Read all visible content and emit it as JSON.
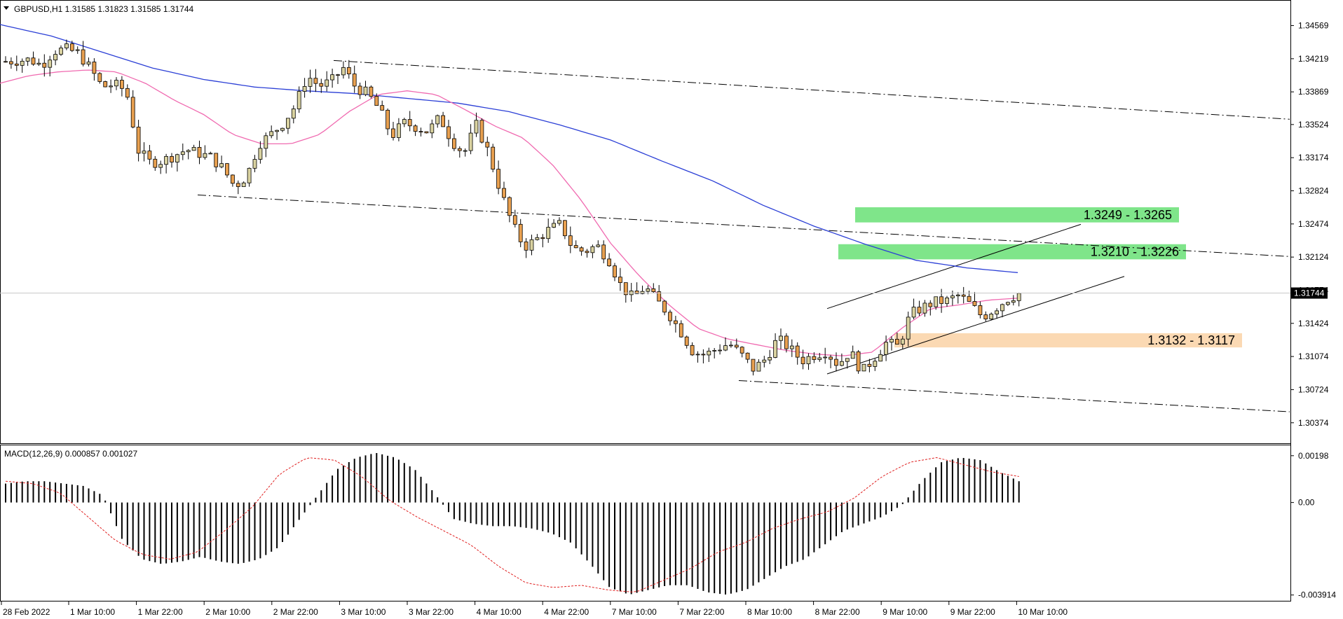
{
  "header": {
    "symbol_line": "GBPUSD,H1  1.31585 1.31823 1.31585 1.31744",
    "indicator_line": "MACD(12,26,9) 0.000857 0.001027"
  },
  "colors": {
    "bull": "#d9d2a0",
    "bear": "#e8a050",
    "ma_fast": "#f06ab0",
    "ma_slow": "#2b3fd6",
    "zone_green": "#7fe58a",
    "zone_orange": "#fbd9b3",
    "macd_signal": "#e02020"
  },
  "chart_data": [
    {
      "type": "candlestick",
      "symbol": "GBPUSD",
      "timeframe": "H1",
      "yticks": [
        "1.34569",
        "1.34219",
        "1.33869",
        "1.33524",
        "1.33174",
        "1.32824",
        "1.32474",
        "1.32124",
        "1.31774",
        "1.31424",
        "1.31074",
        "1.30724",
        "1.30374"
      ],
      "ytick_values": [
        1.34569,
        1.34219,
        1.33869,
        1.33524,
        1.33174,
        1.32824,
        1.32474,
        1.32124,
        1.31774,
        1.31424,
        1.31074,
        1.30724,
        1.30374
      ],
      "ylim": [
        1.3018,
        1.3478
      ],
      "xticks": [
        "28 Feb 2022",
        "1 Mar 10:00",
        "1 Mar 22:00",
        "2 Mar 10:00",
        "2 Mar 22:00",
        "3 Mar 10:00",
        "3 Mar 22:00",
        "4 Mar 10:00",
        "4 Mar 22:00",
        "7 Mar 10:00",
        "7 Mar 22:00",
        "8 Mar 10:00",
        "8 Mar 22:00",
        "9 Mar 10:00",
        "9 Mar 22:00",
        "10 Mar 10:00"
      ],
      "current_price": "1.31744",
      "close_path": [
        1.3419,
        1.342,
        1.3421,
        1.3415,
        1.343,
        1.3432,
        1.3428,
        1.3412,
        1.3392,
        1.3395,
        1.3388,
        1.3325,
        1.3312,
        1.3314,
        1.332,
        1.3326,
        1.3322,
        1.3318,
        1.3306,
        1.3287,
        1.3298,
        1.3332,
        1.3342,
        1.3354,
        1.3372,
        1.3404,
        1.3393,
        1.3398,
        1.3412,
        1.3392,
        1.3385,
        1.3368,
        1.334,
        1.3354,
        1.335,
        1.3345,
        1.336,
        1.3335,
        1.3322,
        1.3352,
        1.3324,
        1.3283,
        1.3247,
        1.3223,
        1.3231,
        1.3241,
        1.3247,
        1.3222,
        1.3218,
        1.3225,
        1.321,
        1.3182,
        1.3169,
        1.3181,
        1.3166,
        1.3152,
        1.3133,
        1.3112,
        1.3109,
        1.3116,
        1.3121,
        1.3109,
        1.3094,
        1.3105,
        1.3126,
        1.3116,
        1.3103,
        1.3109,
        1.3113,
        1.3099,
        1.3113,
        1.3091,
        1.3106,
        1.3122,
        1.3118,
        1.3152,
        1.3159,
        1.3165,
        1.3166,
        1.3172,
        1.3162,
        1.3149,
        1.3158,
        1.3168,
        1.3174
      ],
      "ma_fast_path": [
        1.3396,
        1.3404,
        1.3408,
        1.341,
        1.3408,
        1.3396,
        1.3378,
        1.3363,
        1.3342,
        1.3332,
        1.3332,
        1.3342,
        1.3366,
        1.3384,
        1.3388,
        1.3384,
        1.3368,
        1.3351,
        1.3338,
        1.331,
        1.3272,
        1.3227,
        1.3192,
        1.3162,
        1.3137,
        1.3126,
        1.312,
        1.3114,
        1.311,
        1.3108,
        1.3112,
        1.3137,
        1.3158,
        1.3162,
        1.3167,
        1.3169
      ],
      "ma_slow_path": [
        1.3458,
        1.3446,
        1.3429,
        1.3412,
        1.34,
        1.3392,
        1.3388,
        1.3385,
        1.338,
        1.3375,
        1.3366,
        1.3352,
        1.3336,
        1.3314,
        1.3293,
        1.3267,
        1.3245,
        1.3226,
        1.3209,
        1.3201,
        1.3196
      ],
      "zones": [
        {
          "label": "1.3249 - 1.3265",
          "low": 1.3249,
          "high": 1.3265
        },
        {
          "label": "1.3210 - 1.3226",
          "low": 1.321,
          "high": 1.3226
        },
        {
          "label": "1.3132 - 1.3117",
          "low": 1.3117,
          "high": 1.3132
        }
      ]
    },
    {
      "type": "histogram",
      "indicator": "MACD(12,26,9)",
      "yticks": [
        "0.00198",
        "0.00",
        "-0.003914"
      ],
      "ytick_values": [
        0.00198,
        0.0,
        -0.003914
      ],
      "ylim": [
        -0.0041,
        0.0023
      ],
      "histogram_path": [
        0.0008,
        0.0009,
        0.0009,
        0.0008,
        0.0007,
        0.0003,
        -0.0016,
        -0.0024,
        -0.0026,
        -0.0025,
        -0.0023,
        -0.0025,
        -0.0026,
        -0.0024,
        -0.0019,
        -0.0008,
        0.0003,
        0.0014,
        0.0019,
        0.0021,
        0.0019,
        0.0014,
        0.0004,
        -0.0007,
        -0.0009,
        -0.001,
        -0.001,
        -0.0011,
        -0.0013,
        -0.0017,
        -0.0026,
        -0.0036,
        -0.0039,
        -0.0037,
        -0.0035,
        -0.0035,
        -0.0038,
        -0.0039,
        -0.0037,
        -0.0032,
        -0.0027,
        -0.0024,
        -0.0018,
        -0.0012,
        -0.0009,
        -0.0006,
        -0.0001,
        0.0009,
        0.0017,
        0.0019,
        0.0018,
        0.0013,
        0.0009
      ],
      "signal_path": [
        0.0009,
        0.0008,
        0.0004,
        -0.0006,
        -0.0016,
        -0.0022,
        -0.0024,
        -0.0021,
        -0.0012,
        -0.0002,
        0.0012,
        0.0019,
        0.0018,
        0.0011,
        0.0001,
        -0.0006,
        -0.0012,
        -0.0018,
        -0.0027,
        -0.0034,
        -0.0036,
        -0.0035,
        -0.0037,
        -0.0038,
        -0.0033,
        -0.0028,
        -0.0021,
        -0.0017,
        -0.0011,
        -0.0007,
        -0.0004,
        0.0002,
        0.0011,
        0.0017,
        0.0019,
        0.0016,
        0.0013,
        0.0011
      ]
    }
  ]
}
